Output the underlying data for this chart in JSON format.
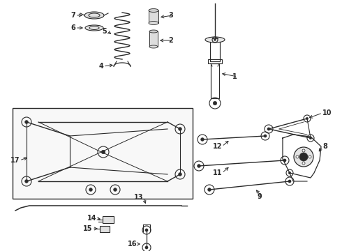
{
  "bg_color": "#ffffff",
  "lc": "#2a2a2a",
  "fig_width": 4.9,
  "fig_height": 3.6,
  "dpi": 100,
  "label_fs": 7.0,
  "bold": true
}
